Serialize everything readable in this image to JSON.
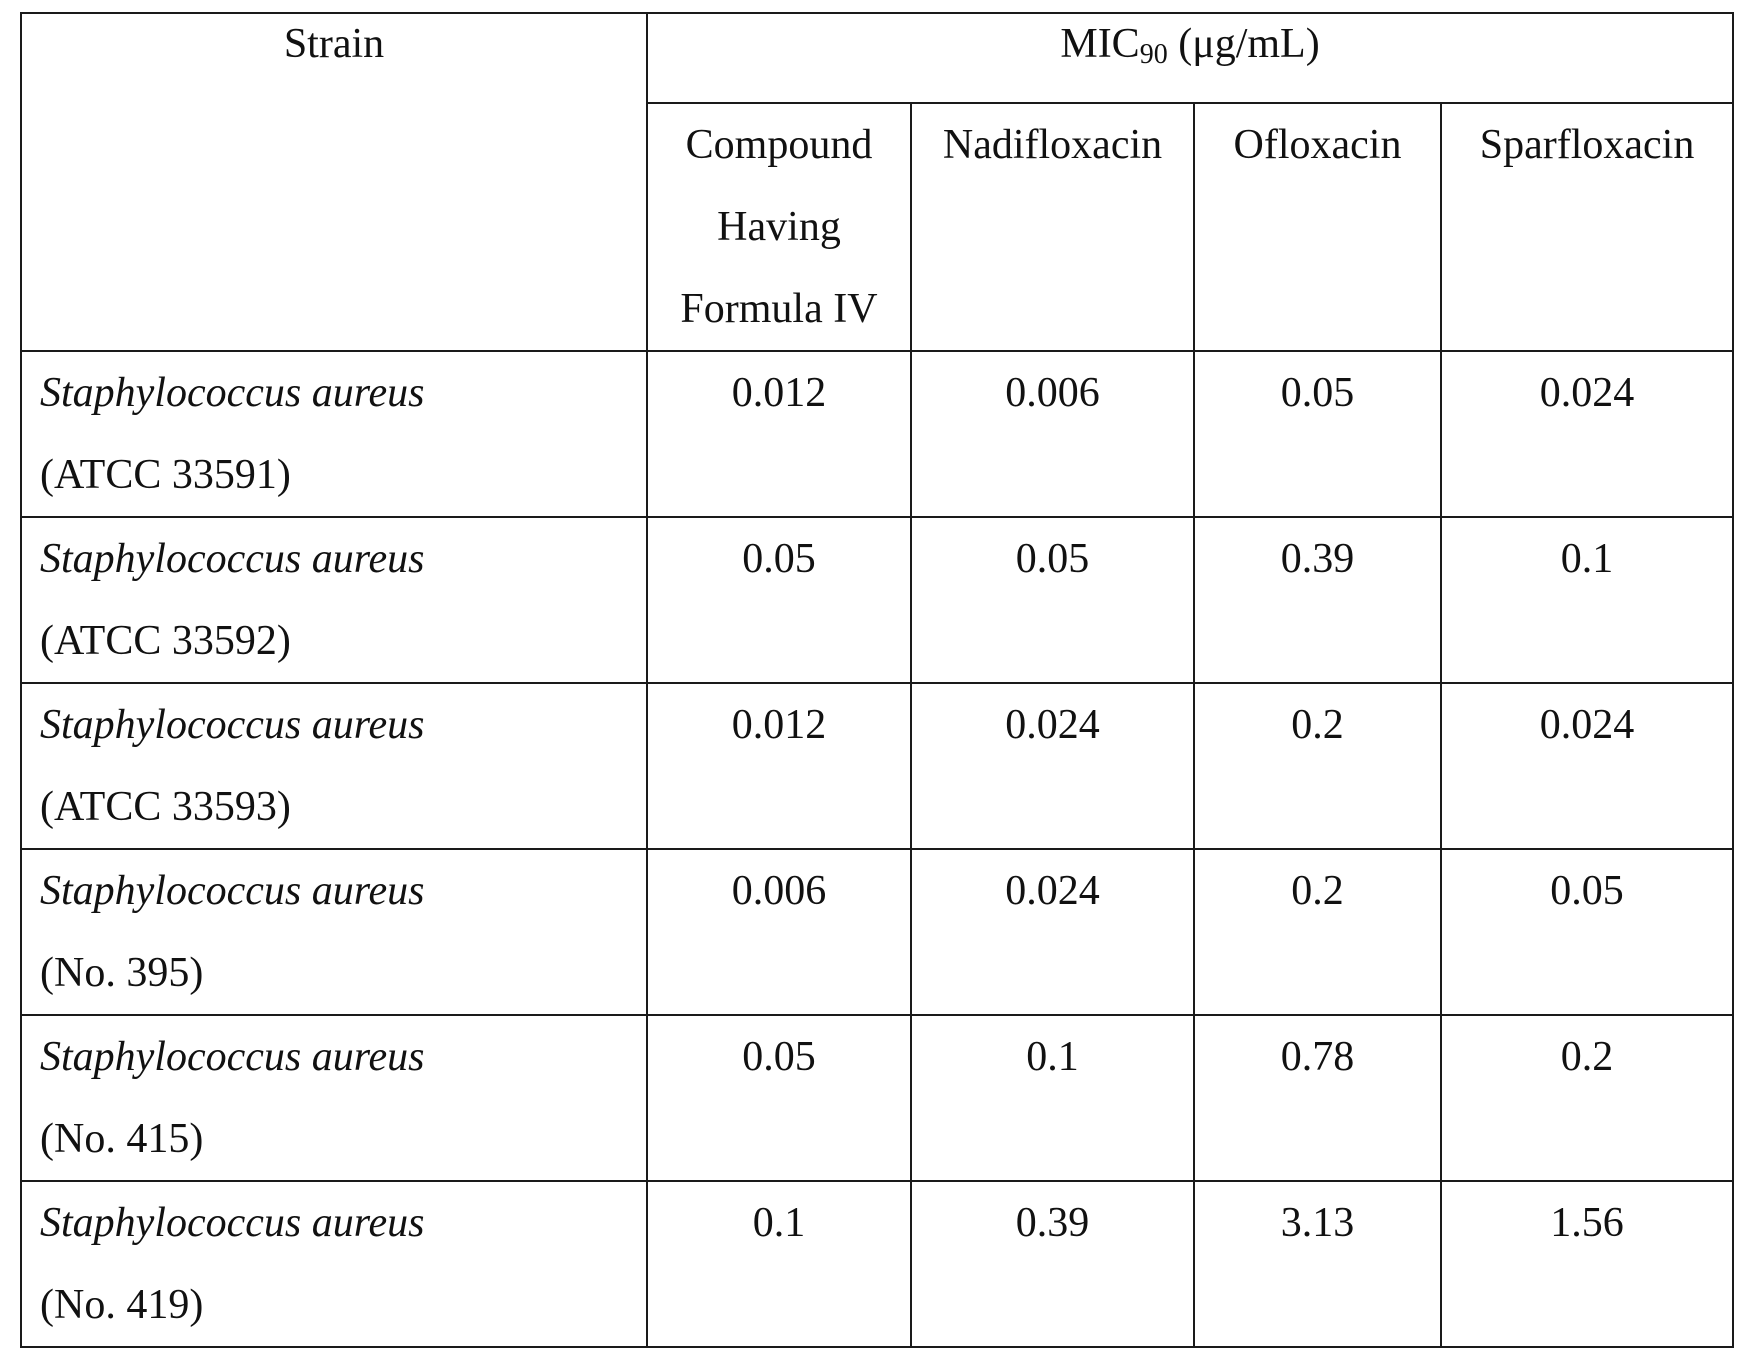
{
  "table": {
    "strain_header": "Strain",
    "mic_header_main": "MIC",
    "mic_header_sub": "90",
    "mic_header_unit": " (μg/mL)",
    "columns": [
      [
        "Compound",
        "Having",
        "Formula IV"
      ],
      [
        "Nadifloxacin"
      ],
      [
        "Ofloxacin"
      ],
      [
        "Sparfloxacin"
      ]
    ],
    "rows": [
      {
        "name": "Staphylococcus aureus",
        "id": "(ATCC 33591)",
        "values": [
          "0.012",
          "0.006",
          "0.05",
          "0.024"
        ]
      },
      {
        "name": "Staphylococcus aureus",
        "id": "(ATCC 33592)",
        "values": [
          "0.05",
          "0.05",
          "0.39",
          "0.1"
        ]
      },
      {
        "name": "Staphylococcus aureus",
        "id": "(ATCC 33593)",
        "values": [
          "0.012",
          "0.024",
          "0.2",
          "0.024"
        ]
      },
      {
        "name": "Staphylococcus aureus",
        "id": "(No. 395)",
        "values": [
          "0.006",
          "0.024",
          "0.2",
          "0.05"
        ]
      },
      {
        "name": "Staphylococcus aureus",
        "id": "(No. 415)",
        "values": [
          "0.05",
          "0.1",
          "0.78",
          "0.2"
        ]
      },
      {
        "name": "Staphylococcus aureus",
        "id": "(No. 419)",
        "values": [
          "0.1",
          "0.39",
          "3.13",
          "1.56"
        ]
      }
    ]
  }
}
